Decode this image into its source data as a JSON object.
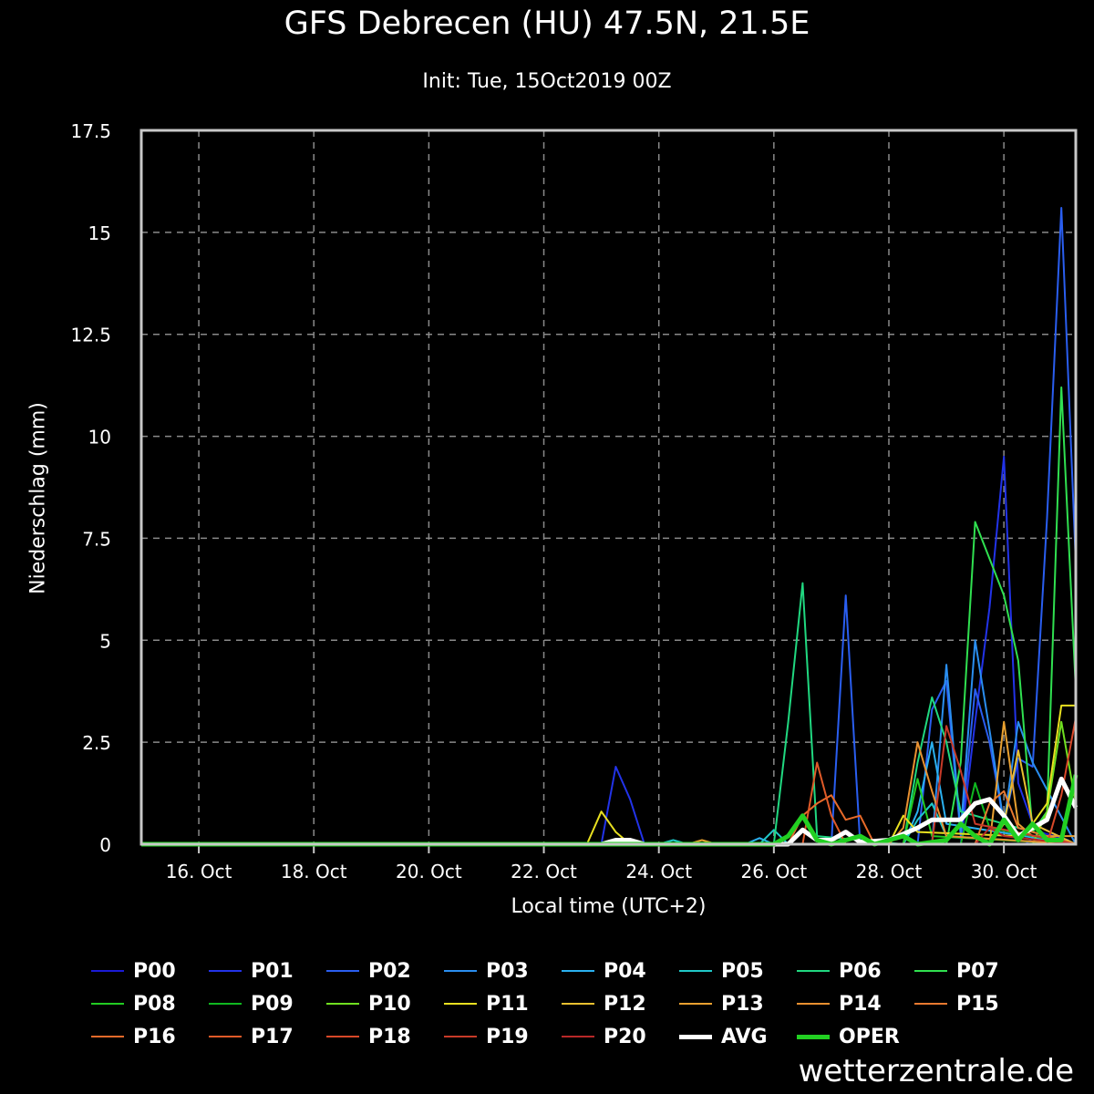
{
  "chart_data": {
    "type": "line",
    "title": "GFS Debrecen (HU) 47.5N, 21.5E",
    "subtitle": "Init: Tue, 15Oct2019 00Z",
    "xlabel": "Local time (UTC+2)",
    "ylabel": "Niederschlag (mm)",
    "ylim": [
      0,
      17.5
    ],
    "xlim": [
      "2019-10-15T02:00",
      "2019-10-31T08:00"
    ],
    "yticks": [
      "0",
      "2.5",
      "5",
      "7.5",
      "10",
      "12.5",
      "15",
      "17.5"
    ],
    "xticks": [
      {
        "x": "2019-10-16T02:00",
        "label": "16. Oct"
      },
      {
        "x": "2019-10-18T02:00",
        "label": "18. Oct"
      },
      {
        "x": "2019-10-20T02:00",
        "label": "20. Oct"
      },
      {
        "x": "2019-10-22T02:00",
        "label": "22. Oct"
      },
      {
        "x": "2019-10-24T02:00",
        "label": "24. Oct"
      },
      {
        "x": "2019-10-26T02:00",
        "label": "26. Oct"
      },
      {
        "x": "2019-10-28T02:00",
        "label": "28. Oct"
      },
      {
        "x": "2019-10-30T02:00",
        "label": "30. Oct"
      }
    ],
    "grid": true,
    "legend_position": "bottom",
    "series": [
      {
        "name": "P00",
        "color": "#1a1ad6",
        "points": [
          [
            "2019-10-15T02:00",
            0
          ],
          [
            "2019-10-30T11:00",
            0
          ],
          [
            "2019-10-30T17:00",
            0.3
          ],
          [
            "2019-10-30T23:00",
            0.2
          ],
          [
            "2019-10-31T05:00",
            0.1
          ]
        ]
      },
      {
        "name": "P01",
        "color": "#2233e8",
        "points": [
          [
            "2019-10-15T02:00",
            0
          ],
          [
            "2019-10-23T02:00",
            0
          ],
          [
            "2019-10-23T08:00",
            1.9
          ],
          [
            "2019-10-23T14:00",
            1.1
          ],
          [
            "2019-10-23T20:00",
            0
          ],
          [
            "2019-10-29T08:00",
            0
          ],
          [
            "2019-10-29T14:00",
            3.0
          ],
          [
            "2019-10-29T20:00",
            5.8
          ],
          [
            "2019-10-30T02:00",
            9.5
          ],
          [
            "2019-10-30T08:00",
            1.5
          ],
          [
            "2019-10-30T14:00",
            0.5
          ],
          [
            "2019-10-31T08:00",
            0
          ]
        ]
      },
      {
        "name": "P02",
        "color": "#2a5ef0",
        "points": [
          [
            "2019-10-15T02:00",
            0
          ],
          [
            "2019-10-27T02:00",
            0
          ],
          [
            "2019-10-27T08:00",
            6.1
          ],
          [
            "2019-10-27T14:00",
            0
          ],
          [
            "2019-10-28T14:00",
            0
          ],
          [
            "2019-10-28T20:00",
            3.3
          ],
          [
            "2019-10-29T02:00",
            4.0
          ],
          [
            "2019-10-29T08:00",
            0.2
          ],
          [
            "2019-10-29T14:00",
            3.8
          ],
          [
            "2019-10-29T20:00",
            2.5
          ],
          [
            "2019-10-30T02:00",
            0.5
          ],
          [
            "2019-10-30T08:00",
            2.1
          ],
          [
            "2019-10-30T14:00",
            1.9
          ],
          [
            "2019-10-30T20:00",
            8.0
          ],
          [
            "2019-10-31T02:00",
            15.6
          ],
          [
            "2019-10-31T08:00",
            6.9
          ]
        ]
      },
      {
        "name": "P03",
        "color": "#2a8ef0",
        "points": [
          [
            "2019-10-15T02:00",
            0
          ],
          [
            "2019-10-28T20:00",
            0
          ],
          [
            "2019-10-29T02:00",
            4.4
          ],
          [
            "2019-10-29T08:00",
            0.3
          ],
          [
            "2019-10-29T14:00",
            5.0
          ],
          [
            "2019-10-29T20:00",
            2.8
          ],
          [
            "2019-10-30T02:00",
            0.5
          ],
          [
            "2019-10-30T08:00",
            3.0
          ],
          [
            "2019-10-30T14:00",
            2.0
          ],
          [
            "2019-10-31T08:00",
            0
          ]
        ]
      },
      {
        "name": "P04",
        "color": "#2ab0f0",
        "points": [
          [
            "2019-10-15T02:00",
            0
          ],
          [
            "2019-10-25T14:00",
            0
          ],
          [
            "2019-10-25T20:00",
            0.15
          ],
          [
            "2019-10-26T02:00",
            0
          ],
          [
            "2019-10-28T08:00",
            0
          ],
          [
            "2019-10-28T14:00",
            0.8
          ],
          [
            "2019-10-28T20:00",
            2.5
          ],
          [
            "2019-10-29T02:00",
            0.5
          ],
          [
            "2019-10-31T08:00",
            0
          ]
        ]
      },
      {
        "name": "P05",
        "color": "#20c8c8",
        "points": [
          [
            "2019-10-15T02:00",
            0
          ],
          [
            "2019-10-24T02:00",
            0
          ],
          [
            "2019-10-24T08:00",
            0.1
          ],
          [
            "2019-10-24T14:00",
            0
          ],
          [
            "2019-10-25T20:00",
            0
          ],
          [
            "2019-10-26T02:00",
            0.35
          ],
          [
            "2019-10-26T08:00",
            0
          ],
          [
            "2019-10-28T08:00",
            0
          ],
          [
            "2019-10-28T14:00",
            0.6
          ],
          [
            "2019-10-28T20:00",
            1.0
          ],
          [
            "2019-10-29T02:00",
            0.2
          ],
          [
            "2019-10-31T08:00",
            0
          ]
        ]
      },
      {
        "name": "P06",
        "color": "#20d880",
        "points": [
          [
            "2019-10-15T02:00",
            0
          ],
          [
            "2019-10-26T02:00",
            0
          ],
          [
            "2019-10-26T08:00",
            3.0
          ],
          [
            "2019-10-26T14:00",
            6.4
          ],
          [
            "2019-10-26T20:00",
            0.2
          ],
          [
            "2019-10-28T08:00",
            0
          ],
          [
            "2019-10-28T14:00",
            2.0
          ],
          [
            "2019-10-28T20:00",
            3.6
          ],
          [
            "2019-10-29T02:00",
            2.5
          ],
          [
            "2019-10-29T08:00",
            0.8
          ],
          [
            "2019-10-31T08:00",
            0
          ]
        ]
      },
      {
        "name": "P07",
        "color": "#30e050",
        "points": [
          [
            "2019-10-15T02:00",
            0
          ],
          [
            "2019-10-29T02:00",
            0
          ],
          [
            "2019-10-29T08:00",
            2.0
          ],
          [
            "2019-10-29T14:00",
            7.9
          ],
          [
            "2019-10-29T20:00",
            7.0
          ],
          [
            "2019-10-30T02:00",
            6.1
          ],
          [
            "2019-10-30T08:00",
            4.5
          ],
          [
            "2019-10-30T14:00",
            0.3
          ],
          [
            "2019-10-30T20:00",
            0.8
          ],
          [
            "2019-10-31T02:00",
            11.2
          ],
          [
            "2019-10-31T08:00",
            3.8
          ]
        ]
      },
      {
        "name": "P08",
        "color": "#22cc22",
        "points": [
          [
            "2019-10-15T02:00",
            0
          ],
          [
            "2019-10-28T08:00",
            0
          ],
          [
            "2019-10-28T14:00",
            1.6
          ],
          [
            "2019-10-28T20:00",
            0.2
          ],
          [
            "2019-10-31T08:00",
            0
          ]
        ]
      },
      {
        "name": "P09",
        "color": "#10b820",
        "points": [
          [
            "2019-10-15T02:00",
            0
          ],
          [
            "2019-10-29T08:00",
            0
          ],
          [
            "2019-10-29T14:00",
            1.5
          ],
          [
            "2019-10-29T20:00",
            0.4
          ],
          [
            "2019-10-31T08:00",
            0
          ]
        ]
      },
      {
        "name": "P10",
        "color": "#70e020",
        "points": [
          [
            "2019-10-15T02:00",
            0
          ],
          [
            "2019-10-30T14:00",
            0
          ],
          [
            "2019-10-30T20:00",
            0.8
          ],
          [
            "2019-10-31T02:00",
            3.0
          ],
          [
            "2019-10-31T08:00",
            1.0
          ]
        ]
      },
      {
        "name": "P11",
        "color": "#e8e020",
        "points": [
          [
            "2019-10-15T02:00",
            0
          ],
          [
            "2019-10-22T20:00",
            0
          ],
          [
            "2019-10-23T02:00",
            0.8
          ],
          [
            "2019-10-23T08:00",
            0.3
          ],
          [
            "2019-10-23T14:00",
            0
          ],
          [
            "2019-10-28T02:00",
            0
          ],
          [
            "2019-10-28T08:00",
            0.7
          ],
          [
            "2019-10-28T14:00",
            0.3
          ],
          [
            "2019-10-30T08:00",
            0.2
          ],
          [
            "2019-10-30T14:00",
            0.5
          ],
          [
            "2019-10-30T20:00",
            1.0
          ],
          [
            "2019-10-31T02:00",
            3.4
          ],
          [
            "2019-10-31T08:00",
            3.4
          ]
        ]
      },
      {
        "name": "P12",
        "color": "#e8c030",
        "points": [
          [
            "2019-10-15T02:00",
            0
          ],
          [
            "2019-10-29T20:00",
            0
          ],
          [
            "2019-10-30T02:00",
            0.5
          ],
          [
            "2019-10-30T08:00",
            2.3
          ],
          [
            "2019-10-30T14:00",
            0.5
          ],
          [
            "2019-10-31T08:00",
            0
          ]
        ]
      },
      {
        "name": "P13",
        "color": "#e8a030",
        "points": [
          [
            "2019-10-15T02:00",
            0
          ],
          [
            "2019-10-24T14:00",
            0
          ],
          [
            "2019-10-24T20:00",
            0.1
          ],
          [
            "2019-10-25T02:00",
            0
          ],
          [
            "2019-10-29T20:00",
            0
          ],
          [
            "2019-10-30T02:00",
            3.0
          ],
          [
            "2019-10-30T08:00",
            0.5
          ],
          [
            "2019-10-30T14:00",
            0.2
          ],
          [
            "2019-10-31T08:00",
            0.2
          ]
        ]
      },
      {
        "name": "P14",
        "color": "#e89030",
        "points": [
          [
            "2019-10-15T02:00",
            0
          ],
          [
            "2019-10-28T02:00",
            0
          ],
          [
            "2019-10-28T08:00",
            0.4
          ],
          [
            "2019-10-28T14:00",
            2.5
          ],
          [
            "2019-10-28T20:00",
            1.3
          ],
          [
            "2019-10-29T02:00",
            0.2
          ],
          [
            "2019-10-31T08:00",
            0
          ]
        ]
      },
      {
        "name": "P15",
        "color": "#e87a30",
        "points": [
          [
            "2019-10-15T02:00",
            0
          ],
          [
            "2019-10-29T14:00",
            0
          ],
          [
            "2019-10-29T20:00",
            1.0
          ],
          [
            "2019-10-30T02:00",
            1.3
          ],
          [
            "2019-10-30T08:00",
            0.4
          ],
          [
            "2019-10-31T08:00",
            0
          ]
        ]
      },
      {
        "name": "P16",
        "color": "#e86a2a",
        "points": [
          [
            "2019-10-15T02:00",
            0
          ],
          [
            "2019-10-26T08:00",
            0
          ],
          [
            "2019-10-26T14:00",
            0.7
          ],
          [
            "2019-10-26T20:00",
            1.0
          ],
          [
            "2019-10-27T02:00",
            1.2
          ],
          [
            "2019-10-27T08:00",
            0.6
          ],
          [
            "2019-10-27T14:00",
            0.7
          ],
          [
            "2019-10-27T20:00",
            0
          ],
          [
            "2019-10-31T08:00",
            0
          ]
        ]
      },
      {
        "name": "P17",
        "color": "#e05a28",
        "points": [
          [
            "2019-10-15T02:00",
            0
          ],
          [
            "2019-10-26T14:00",
            0
          ],
          [
            "2019-10-26T20:00",
            2.0
          ],
          [
            "2019-10-27T02:00",
            0.7
          ],
          [
            "2019-10-27T08:00",
            0
          ],
          [
            "2019-10-31T08:00",
            0
          ]
        ]
      },
      {
        "name": "P18",
        "color": "#d84828",
        "points": [
          [
            "2019-10-15T02:00",
            0
          ],
          [
            "2019-10-30T20:00",
            0
          ],
          [
            "2019-10-31T02:00",
            1.2
          ],
          [
            "2019-10-31T08:00",
            3.1
          ]
        ]
      },
      {
        "name": "P19",
        "color": "#c83a28",
        "points": [
          [
            "2019-10-15T02:00",
            0
          ],
          [
            "2019-10-28T20:00",
            0
          ],
          [
            "2019-10-29T02:00",
            2.9
          ],
          [
            "2019-10-29T08:00",
            1.8
          ],
          [
            "2019-10-29T14:00",
            0.5
          ],
          [
            "2019-10-31T08:00",
            0
          ]
        ]
      },
      {
        "name": "P20",
        "color": "#b82828",
        "points": [
          [
            "2019-10-15T02:00",
            0
          ],
          [
            "2019-10-29T14:00",
            0
          ],
          [
            "2019-10-29T20:00",
            0.4
          ],
          [
            "2019-10-30T02:00",
            0.2
          ],
          [
            "2019-10-31T08:00",
            0
          ]
        ]
      },
      {
        "name": "AVG",
        "color": "#ffffff",
        "points": [
          [
            "2019-10-15T02:00",
            0
          ],
          [
            "2019-10-23T02:00",
            0
          ],
          [
            "2019-10-23T08:00",
            0.1
          ],
          [
            "2019-10-23T14:00",
            0.1
          ],
          [
            "2019-10-23T20:00",
            0
          ],
          [
            "2019-10-26T08:00",
            0
          ],
          [
            "2019-10-26T14:00",
            0.35
          ],
          [
            "2019-10-26T20:00",
            0.1
          ],
          [
            "2019-10-27T02:00",
            0.1
          ],
          [
            "2019-10-27T08:00",
            0.3
          ],
          [
            "2019-10-27T14:00",
            0.05
          ],
          [
            "2019-10-28T02:00",
            0.1
          ],
          [
            "2019-10-28T08:00",
            0.25
          ],
          [
            "2019-10-28T14:00",
            0.4
          ],
          [
            "2019-10-28T20:00",
            0.6
          ],
          [
            "2019-10-29T02:00",
            0.6
          ],
          [
            "2019-10-29T08:00",
            0.6
          ],
          [
            "2019-10-29T14:00",
            1.0
          ],
          [
            "2019-10-29T20:00",
            1.1
          ],
          [
            "2019-10-30T02:00",
            0.7
          ],
          [
            "2019-10-30T08:00",
            0.2
          ],
          [
            "2019-10-30T14:00",
            0.4
          ],
          [
            "2019-10-30T20:00",
            0.6
          ],
          [
            "2019-10-31T02:00",
            1.6
          ],
          [
            "2019-10-31T08:00",
            0.9
          ]
        ]
      },
      {
        "name": "OPER",
        "color": "#22d022",
        "points": [
          [
            "2019-10-15T02:00",
            0
          ],
          [
            "2019-10-26T02:00",
            0
          ],
          [
            "2019-10-26T08:00",
            0.2
          ],
          [
            "2019-10-26T14:00",
            0.7
          ],
          [
            "2019-10-26T20:00",
            0.1
          ],
          [
            "2019-10-27T02:00",
            0
          ],
          [
            "2019-10-27T14:00",
            0.2
          ],
          [
            "2019-10-27T20:00",
            0
          ],
          [
            "2019-10-28T08:00",
            0.2
          ],
          [
            "2019-10-28T14:00",
            0
          ],
          [
            "2019-10-29T02:00",
            0.1
          ],
          [
            "2019-10-29T08:00",
            0.5
          ],
          [
            "2019-10-29T14:00",
            0.2
          ],
          [
            "2019-10-29T20:00",
            0
          ],
          [
            "2019-10-30T02:00",
            0.6
          ],
          [
            "2019-10-30T08:00",
            0.1
          ],
          [
            "2019-10-30T14:00",
            0.5
          ],
          [
            "2019-10-30T20:00",
            0.1
          ],
          [
            "2019-10-31T02:00",
            0.1
          ],
          [
            "2019-10-31T08:00",
            1.7
          ]
        ]
      }
    ]
  },
  "watermark": "wetterzentrale.de"
}
